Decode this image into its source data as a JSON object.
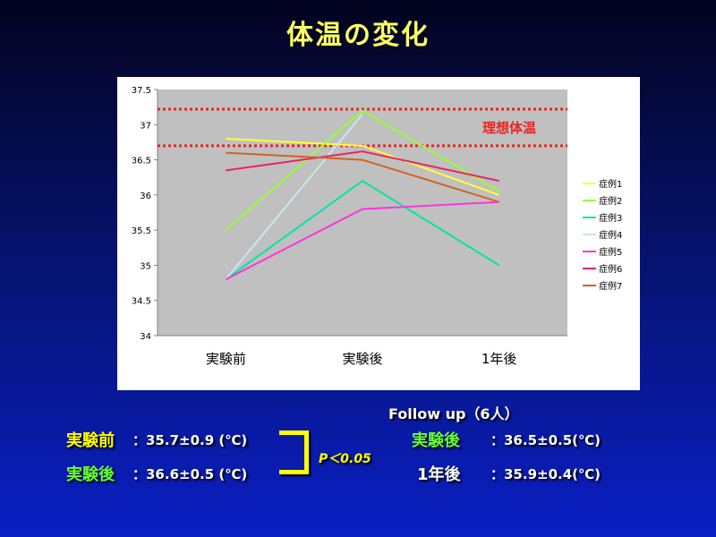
{
  "title": "体温の変化",
  "chart_data": {
    "type": "line",
    "categories": [
      "実験前",
      "実験後",
      "1年後"
    ],
    "ylim": [
      34,
      37.5
    ],
    "yticks": [
      "34",
      "34.5",
      "35",
      "35.5",
      "36",
      "36.5",
      "37",
      "37.5"
    ],
    "legend_position": "right",
    "series": [
      {
        "name": "症例1",
        "color": "#ffff33",
        "values": [
          36.8,
          36.7,
          36.0
        ]
      },
      {
        "name": "症例2",
        "color": "#99ff33",
        "values": [
          35.5,
          37.2,
          36.05
        ]
      },
      {
        "name": "症例3",
        "color": "#00e6a0",
        "values": [
          34.8,
          36.2,
          35.0
        ]
      },
      {
        "name": "症例4",
        "color": "#cce6ee",
        "values": [
          34.8,
          37.15,
          null
        ]
      },
      {
        "name": "症例5",
        "color": "#ff33dd",
        "values": [
          34.8,
          35.8,
          35.9
        ]
      },
      {
        "name": "症例6",
        "color": "#ee2266",
        "values": [
          36.35,
          36.62,
          36.2
        ]
      },
      {
        "name": "症例7",
        "color": "#cc6622",
        "values": [
          36.6,
          36.5,
          35.9
        ]
      }
    ],
    "reference_lines": [
      {
        "value": 37.22,
        "color": "#ee2222"
      },
      {
        "value": 36.7,
        "color": "#ee2222"
      }
    ],
    "annotation": "理想体温"
  },
  "stats": {
    "before_label": "実験前",
    "before_value": "：35.7±0.9 (℃)",
    "after_label": "実験後",
    "after_value": "：36.6±0.5 (℃)",
    "p_value": "P＜0.05",
    "followup_title": "Follow up（6人）",
    "fu_after_label": "実験後",
    "fu_after_value": "：36.5±0.5(℃)",
    "fu_year_label": "1年後",
    "fu_year_value": "：35.9±0.4(℃)"
  },
  "colors": {
    "title": "#ffff66",
    "plot_background": "#c0c0c0",
    "reference_line": "#ee2222",
    "annotation": "#ee2222"
  }
}
